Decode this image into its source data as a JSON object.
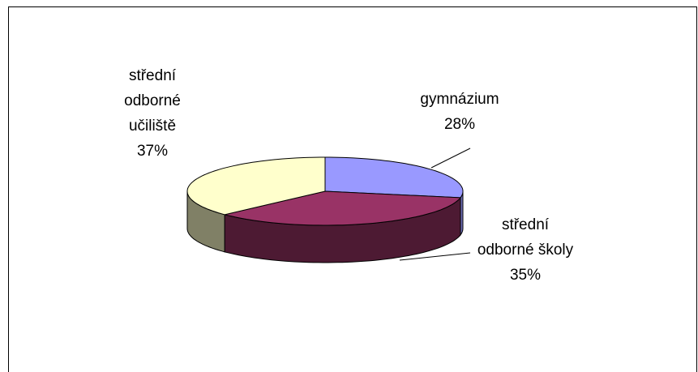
{
  "chart_data": {
    "type": "pie",
    "three_d": true,
    "categories": [
      "gymnázium",
      "střední\nodborné školy",
      "střední\nodborné\nučiliště"
    ],
    "values": [
      28,
      35,
      37
    ],
    "value_labels": [
      "28%",
      "35%",
      "37%"
    ],
    "colors": [
      "#9999ff",
      "#993366",
      "#ffffcc"
    ],
    "side_colors": [
      "#6b6bb3",
      "#4d1a33",
      "#808066"
    ]
  }
}
